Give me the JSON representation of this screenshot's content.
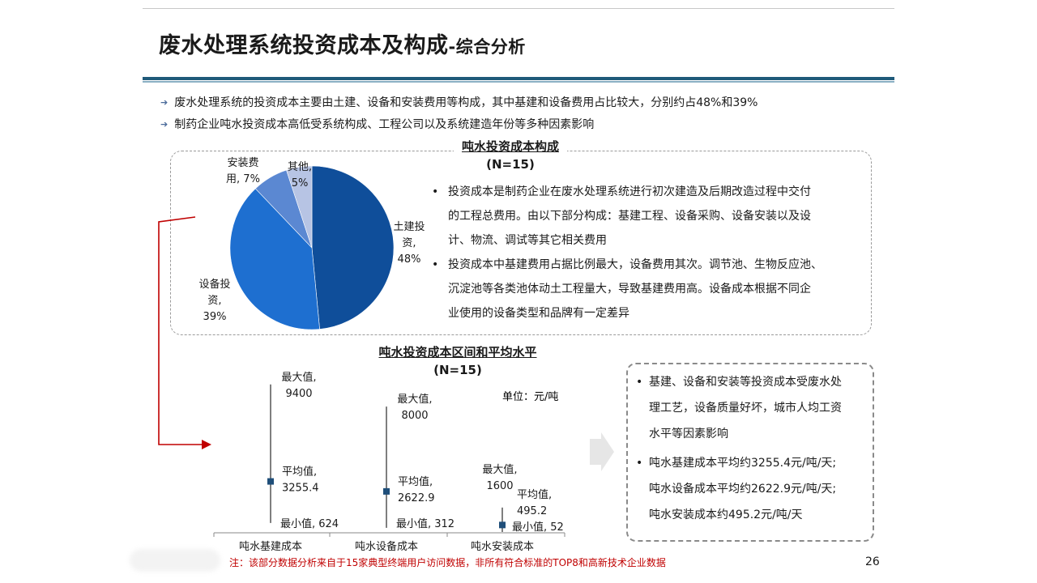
{
  "page": {
    "title_main": "废水处理系统投资成本及构成",
    "title_sub": "-综合分析",
    "bullets": [
      "废水处理系统的投资成本主要由土建、设备和安装费用等构成，其中基建和设备费用占比较大，分别约占48%和39%",
      "制药企业吨水投资成本高低受系统构成、工程公司以及系统建造年份等多种因素影响"
    ],
    "top_panel_text": [
      [
        "投资成本是制药企业在废水处理系统进行初次建造及后期改造过程中交付",
        "的工程总费用。由以下部分构成：基建工程、设备采购、设备安装以及设",
        "计、物流、调试等其它相关费用"
      ],
      [
        "投资成本中基建费用占据比例最大，设备费用其次。调节池、生物反应池、",
        "沉淀池等各类池体动土工程量大，导致基建费用高。设备成本根据不同企",
        "业使用的设备类型和品牌有一定差异"
      ]
    ],
    "right_panel_text": [
      [
        "基建、设备和安装等投资成本受废水处",
        "理工艺，设备质量好坏，城市人均工资",
        "水平等因素影响"
      ],
      [
        "吨水基建成本平均约3255.4元/吨/天;",
        "吨水设备成本平均约2622.9元/吨/天;",
        "吨水安装成本约495.2元/吨/天"
      ]
    ],
    "note": "注：该部分数据分析来自于15家典型终端用户访问数据，非所有符合标准的TOP8和高新技术企业数据",
    "page_number": "26",
    "colors": {
      "rule_dark": "#1f5a7a",
      "arrow_red": "#c00000",
      "marker": "#1f4e79",
      "note_red": "#c00000"
    }
  },
  "chart_data": [
    {
      "type": "pie",
      "title": "吨水投资成本构成",
      "subtitle": "(N=15)",
      "slices": [
        {
          "label_lines": [
            "土建投",
            "资,",
            "48%"
          ],
          "value": 48,
          "color": "#0f4e9a"
        },
        {
          "label_lines": [
            "设备投",
            "资,",
            "39%"
          ],
          "value": 39,
          "color": "#1e6fd0"
        },
        {
          "label_lines": [
            "安装费",
            "用, 7%"
          ],
          "value": 7,
          "color": "#5b88d2"
        },
        {
          "label_lines": [
            "其他,",
            "5%"
          ],
          "value": 5,
          "color": "#b7c4e4"
        }
      ]
    },
    {
      "type": "range",
      "title": "吨水投资成本区间和平均水平",
      "subtitle": "(N=15)",
      "unit": "单位：元/吨",
      "categories": [
        "吨水基建成本",
        "吨水设备成本",
        "吨水安装成本"
      ],
      "series": [
        {
          "min": 624,
          "avg": 3255.4,
          "max": 9400,
          "max_label": [
            "最大值,",
            "9400"
          ],
          "avg_label": [
            "平均值,",
            "3255.4"
          ],
          "min_label": [
            "最小值, 624"
          ]
        },
        {
          "min": 312,
          "avg": 2622.9,
          "max": 8000,
          "max_label": [
            "最大值,",
            "8000"
          ],
          "avg_label": [
            "平均值,",
            "2622.9"
          ],
          "min_label": [
            "最小值, 312"
          ]
        },
        {
          "min": 52,
          "avg": 495.2,
          "max": 1600,
          "max_label": [
            "最大值,",
            "1600"
          ],
          "avg_label": [
            "平均值,",
            "495.2"
          ],
          "min_label": [
            "最小值, 52"
          ]
        }
      ]
    }
  ]
}
